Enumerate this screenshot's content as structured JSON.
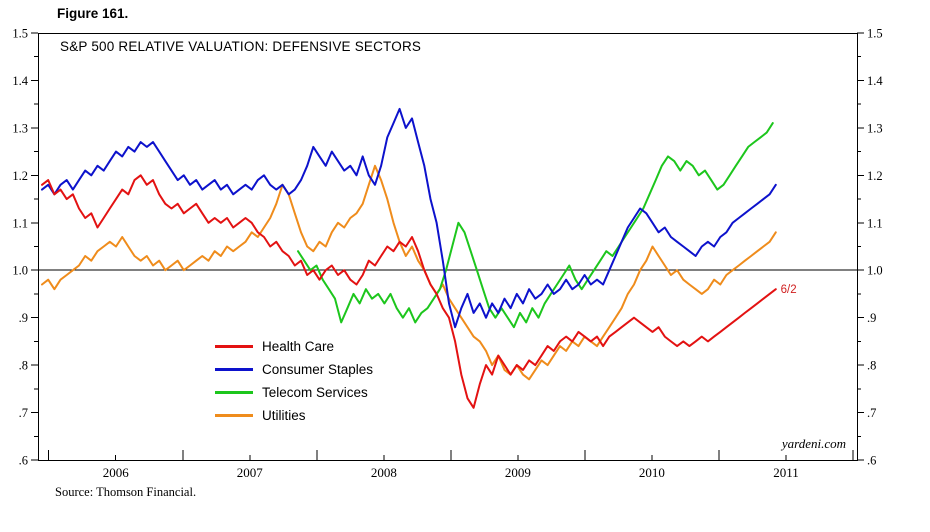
{
  "figure_label": "Figure 161.",
  "source_note": "Source: Thomson Financial.",
  "watermark": "yardeni.com",
  "chart_data": {
    "type": "line",
    "title": "S&P 500 RELATIVE VALUATION: DEFENSIVE SECTORS",
    "legend_position": "inside-bottom-left",
    "grid": "off",
    "x_axis": {
      "range": [
        2005.92,
        2012.03
      ],
      "labels": [
        "2006",
        "2007",
        "2008",
        "2009",
        "2010",
        "2011"
      ],
      "label_positions": [
        2006.5,
        2007.5,
        2008.5,
        2009.5,
        2010.5,
        2011.5
      ],
      "tick_years": [
        2006,
        2007,
        2008,
        2009,
        2010,
        2011,
        2012
      ]
    },
    "y_axis": {
      "range": [
        0.6,
        1.5
      ],
      "major_step": 0.1,
      "minor_step": 0.05,
      "tick_labels": [
        "1.5",
        "1.4",
        "1.3",
        "1.2",
        "1.1",
        "1.0",
        ".9",
        ".8",
        ".7",
        ".6"
      ],
      "tick_values": [
        1.5,
        1.4,
        1.3,
        1.2,
        1.1,
        1.0,
        0.9,
        0.8,
        0.7,
        0.6
      ],
      "reference_line": 1.0
    },
    "annotation": {
      "text": "6/2",
      "year": 2011.52,
      "value": 0.96,
      "color": "#d02020"
    },
    "series": [
      {
        "name": "Health Care",
        "color": "#e31212",
        "x_start": 2005.95,
        "x_step": 0.046,
        "values": [
          1.18,
          1.19,
          1.16,
          1.17,
          1.15,
          1.16,
          1.13,
          1.11,
          1.12,
          1.09,
          1.11,
          1.13,
          1.15,
          1.17,
          1.16,
          1.19,
          1.2,
          1.18,
          1.19,
          1.16,
          1.14,
          1.13,
          1.14,
          1.12,
          1.13,
          1.14,
          1.12,
          1.1,
          1.11,
          1.1,
          1.11,
          1.09,
          1.1,
          1.11,
          1.1,
          1.08,
          1.07,
          1.05,
          1.06,
          1.04,
          1.03,
          1.01,
          1.02,
          0.99,
          1.0,
          0.98,
          1.0,
          1.01,
          0.99,
          1.0,
          0.98,
          0.97,
          0.99,
          1.02,
          1.01,
          1.03,
          1.05,
          1.04,
          1.06,
          1.05,
          1.07,
          1.04,
          1.0,
          0.97,
          0.95,
          0.92,
          0.9,
          0.85,
          0.78,
          0.73,
          0.71,
          0.76,
          0.8,
          0.78,
          0.82,
          0.8,
          0.78,
          0.8,
          0.79,
          0.81,
          0.8,
          0.82,
          0.84,
          0.83,
          0.85,
          0.86,
          0.85,
          0.87,
          0.86,
          0.85,
          0.86,
          0.84,
          0.86,
          0.87,
          0.88,
          0.89,
          0.9,
          0.89,
          0.88,
          0.87,
          0.88,
          0.86,
          0.85,
          0.84,
          0.85,
          0.84,
          0.85,
          0.86,
          0.85,
          0.86,
          0.87,
          0.88,
          0.89,
          0.9,
          0.91,
          0.92,
          0.93,
          0.94,
          0.95,
          0.96
        ]
      },
      {
        "name": "Consumer Staples",
        "color": "#0d12cc",
        "x_start": 2005.95,
        "x_step": 0.046,
        "values": [
          1.17,
          1.18,
          1.16,
          1.18,
          1.19,
          1.17,
          1.19,
          1.21,
          1.2,
          1.22,
          1.21,
          1.23,
          1.25,
          1.24,
          1.26,
          1.25,
          1.27,
          1.26,
          1.27,
          1.25,
          1.23,
          1.21,
          1.19,
          1.2,
          1.18,
          1.19,
          1.17,
          1.18,
          1.19,
          1.17,
          1.18,
          1.16,
          1.17,
          1.18,
          1.17,
          1.19,
          1.2,
          1.18,
          1.17,
          1.18,
          1.16,
          1.17,
          1.19,
          1.22,
          1.26,
          1.24,
          1.22,
          1.25,
          1.23,
          1.21,
          1.22,
          1.2,
          1.24,
          1.2,
          1.18,
          1.22,
          1.28,
          1.31,
          1.34,
          1.3,
          1.32,
          1.27,
          1.22,
          1.15,
          1.1,
          1.02,
          0.93,
          0.88,
          0.92,
          0.95,
          0.91,
          0.93,
          0.9,
          0.93,
          0.91,
          0.94,
          0.92,
          0.95,
          0.93,
          0.96,
          0.94,
          0.95,
          0.97,
          0.95,
          0.96,
          0.98,
          0.96,
          0.97,
          0.99,
          0.97,
          0.98,
          0.97,
          1.0,
          1.03,
          1.06,
          1.09,
          1.11,
          1.13,
          1.12,
          1.1,
          1.08,
          1.09,
          1.07,
          1.06,
          1.05,
          1.04,
          1.03,
          1.05,
          1.06,
          1.05,
          1.07,
          1.08,
          1.1,
          1.11,
          1.12,
          1.13,
          1.14,
          1.15,
          1.16,
          1.18
        ]
      },
      {
        "name": "Telecom Services",
        "color": "#1dc61d",
        "x_start": 2007.86,
        "x_step": 0.046,
        "values": [
          1.04,
          1.02,
          1.0,
          1.01,
          0.98,
          0.96,
          0.94,
          0.89,
          0.92,
          0.95,
          0.93,
          0.96,
          0.94,
          0.95,
          0.93,
          0.95,
          0.92,
          0.9,
          0.92,
          0.89,
          0.91,
          0.92,
          0.94,
          0.96,
          1.0,
          1.05,
          1.1,
          1.08,
          1.04,
          1.0,
          0.96,
          0.92,
          0.9,
          0.92,
          0.9,
          0.88,
          0.91,
          0.89,
          0.92,
          0.9,
          0.93,
          0.95,
          0.97,
          0.99,
          1.01,
          0.98,
          0.96,
          0.98,
          1.0,
          1.02,
          1.04,
          1.03,
          1.05,
          1.07,
          1.09,
          1.11,
          1.13,
          1.16,
          1.19,
          1.22,
          1.24,
          1.23,
          1.21,
          1.23,
          1.22,
          1.2,
          1.21,
          1.19,
          1.17,
          1.18,
          1.2,
          1.22,
          1.24,
          1.26,
          1.27,
          1.28,
          1.29,
          1.31
        ]
      },
      {
        "name": "Utilities",
        "color": "#ef8c1c",
        "x_start": 2005.95,
        "x_step": 0.046,
        "values": [
          0.97,
          0.98,
          0.96,
          0.98,
          0.99,
          1.0,
          1.01,
          1.03,
          1.02,
          1.04,
          1.05,
          1.06,
          1.05,
          1.07,
          1.05,
          1.03,
          1.02,
          1.03,
          1.01,
          1.02,
          1.0,
          1.01,
          1.02,
          1.0,
          1.01,
          1.02,
          1.03,
          1.02,
          1.04,
          1.03,
          1.05,
          1.04,
          1.05,
          1.06,
          1.08,
          1.07,
          1.09,
          1.11,
          1.14,
          1.18,
          1.16,
          1.12,
          1.08,
          1.05,
          1.04,
          1.06,
          1.05,
          1.08,
          1.1,
          1.09,
          1.11,
          1.12,
          1.14,
          1.18,
          1.22,
          1.19,
          1.15,
          1.1,
          1.06,
          1.03,
          1.05,
          1.02,
          1.0,
          0.97,
          0.95,
          0.97,
          0.94,
          0.92,
          0.9,
          0.88,
          0.86,
          0.85,
          0.83,
          0.8,
          0.82,
          0.79,
          0.78,
          0.8,
          0.78,
          0.77,
          0.79,
          0.81,
          0.8,
          0.82,
          0.84,
          0.83,
          0.85,
          0.84,
          0.86,
          0.85,
          0.84,
          0.86,
          0.88,
          0.9,
          0.92,
          0.95,
          0.97,
          1.0,
          1.02,
          1.05,
          1.03,
          1.01,
          0.99,
          1.0,
          0.98,
          0.97,
          0.96,
          0.95,
          0.96,
          0.98,
          0.97,
          0.99,
          1.0,
          1.01,
          1.02,
          1.03,
          1.04,
          1.05,
          1.06,
          1.08
        ]
      }
    ]
  }
}
